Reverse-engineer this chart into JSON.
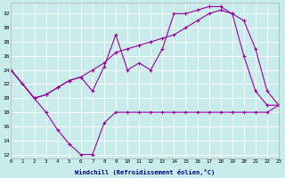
{
  "background_color": "#c8ecec",
  "grid_color": "#ffffff",
  "line_color": "#990099",
  "xlabel": "Windchill (Refroidissement éolien,°C)",
  "xlim": [
    0,
    23
  ],
  "ylim": [
    11.5,
    33.5
  ],
  "yticks": [
    12,
    14,
    16,
    18,
    20,
    22,
    24,
    26,
    28,
    30,
    32
  ],
  "xticks": [
    0,
    1,
    2,
    3,
    4,
    5,
    6,
    7,
    8,
    9,
    10,
    11,
    12,
    13,
    14,
    15,
    16,
    17,
    18,
    19,
    20,
    21,
    22,
    23
  ],
  "curve1_x": [
    0,
    1,
    2,
    3,
    4,
    5,
    6,
    7,
    8,
    9,
    10,
    11,
    12,
    13,
    14,
    15,
    16,
    17,
    18,
    19,
    20,
    21,
    22,
    23
  ],
  "curve1_y": [
    24,
    22,
    20,
    18,
    15.5,
    13.5,
    12,
    12,
    16.5,
    18,
    18,
    18,
    18,
    18,
    18,
    18,
    18,
    18,
    18,
    18,
    18,
    18,
    18,
    19
  ],
  "curve2_x": [
    0,
    2,
    3,
    4,
    5,
    6,
    7,
    8,
    9,
    10,
    11,
    12,
    13,
    14,
    15,
    16,
    17,
    18,
    19,
    20,
    21,
    22,
    23
  ],
  "curve2_y": [
    24,
    20,
    20.5,
    21.5,
    22.5,
    23,
    24,
    25,
    26.5,
    27,
    27.5,
    28,
    28.5,
    29,
    30,
    31,
    32,
    32.5,
    32,
    26,
    21,
    19,
    19
  ],
  "curve3_x": [
    0,
    2,
    3,
    4,
    5,
    6,
    7,
    8,
    9,
    10,
    11,
    12,
    13,
    14,
    15,
    16,
    17,
    18,
    19,
    20,
    21,
    22,
    23
  ],
  "curve3_y": [
    24,
    20,
    20.5,
    21.5,
    22.5,
    23,
    21,
    24.5,
    29,
    24,
    25,
    24,
    27,
    32,
    32,
    32.5,
    33,
    33,
    32,
    31,
    27,
    21,
    19
  ]
}
